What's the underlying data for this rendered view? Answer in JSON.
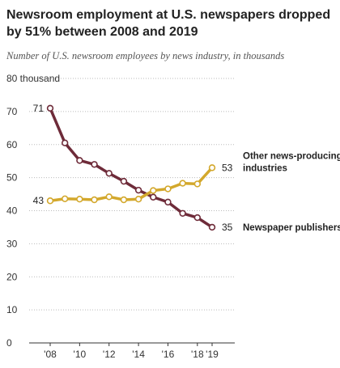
{
  "title": "Newsroom employment at U.S. newspapers dropped by 51% between 2008 and 2019",
  "subtitle": "Number of U.S. newsroom employees by news industry, in thousands",
  "colors": {
    "newspaper": "#6e2b39",
    "other": "#d3a82c",
    "grid": "#bbbbbb",
    "axis": "#333333"
  },
  "chart_data": {
    "type": "line",
    "title": "Newsroom employment at U.S. newspapers dropped by 51% between 2008 and 2019",
    "subtitle": "Number of U.S. newsroom employees by news industry, in thousands",
    "x": [
      2008,
      2009,
      2010,
      2011,
      2012,
      2013,
      2014,
      2015,
      2016,
      2017,
      2018,
      2019
    ],
    "xtick_values": [
      2008,
      2010,
      2012,
      2014,
      2016,
      2018,
      2019
    ],
    "xtick_labels": [
      "'08",
      "'10",
      "'12",
      "'14",
      "'16",
      "'18",
      "'19"
    ],
    "ylim": [
      0,
      80
    ],
    "ytick_values": [
      0,
      10,
      20,
      30,
      40,
      50,
      60,
      70,
      80
    ],
    "ytick_labels": [
      "0",
      "10",
      "20",
      "30",
      "40",
      "50",
      "60",
      "70",
      "80 thousand"
    ],
    "grid": true,
    "series": [
      {
        "name": "Newspaper publishers",
        "values": [
          71,
          60.5,
          55.2,
          54,
          51.3,
          48.9,
          46.2,
          44.1,
          42.6,
          39.2,
          37.9,
          35
        ],
        "start_label": "71",
        "end_label": "35"
      },
      {
        "name": "Other news-producing industries",
        "values": [
          43,
          43.6,
          43.5,
          43.3,
          44.2,
          43.3,
          43.5,
          46.1,
          46.6,
          48.3,
          48.1,
          53
        ],
        "start_label": "43",
        "end_label": "53"
      }
    ]
  }
}
